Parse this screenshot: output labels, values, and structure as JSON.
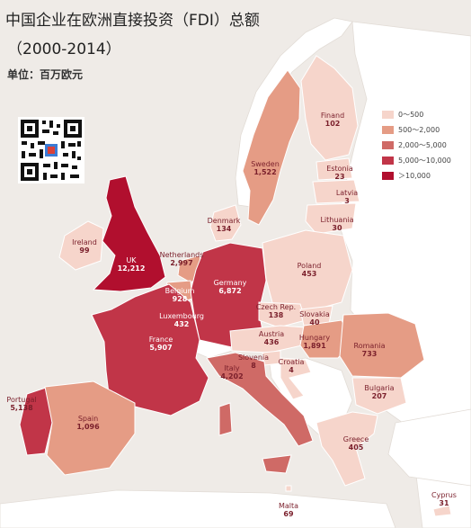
{
  "title": "中国企业在欧洲直接投资（FDI）总额",
  "subtitle": "（2000-2014）",
  "unit": "单位：百万欧元",
  "legend": [
    {
      "label": "0～500",
      "color": "#f6d5cb"
    },
    {
      "label": "500～2,000",
      "color": "#e59c85"
    },
    {
      "label": "2,000～5,000",
      "color": "#cf6a66"
    },
    {
      "label": "5,000～10,000",
      "color": "#c13548"
    },
    {
      "label": "＞10,000",
      "color": "#b10f2e"
    }
  ],
  "countries": [
    {
      "name": "Finand",
      "value": "102"
    },
    {
      "name": "Sweden",
      "value": "1,522"
    },
    {
      "name": "Estonia",
      "value": "23"
    },
    {
      "name": "Latvia",
      "value": "3"
    },
    {
      "name": "Lithuania",
      "value": "30"
    },
    {
      "name": "Denmark",
      "value": "134"
    },
    {
      "name": "Ireland",
      "value": "99"
    },
    {
      "name": "UK",
      "value": "12,212"
    },
    {
      "name": "Netherlands",
      "value": "2,997"
    },
    {
      "name": "Belgium",
      "value": "928"
    },
    {
      "name": "Luxembourg",
      "value": "432"
    },
    {
      "name": "Germany",
      "value": "6,872"
    },
    {
      "name": "Poland",
      "value": "453"
    },
    {
      "name": "Czech Rep.",
      "value": "138"
    },
    {
      "name": "Slovakia",
      "value": "40"
    },
    {
      "name": "Austria",
      "value": "436"
    },
    {
      "name": "Hungary",
      "value": "1,891"
    },
    {
      "name": "Romania",
      "value": "733"
    },
    {
      "name": "France",
      "value": "5,907"
    },
    {
      "name": "Slovenia",
      "value": "8"
    },
    {
      "name": "Croatia",
      "value": "4"
    },
    {
      "name": "Italy",
      "value": "4,202"
    },
    {
      "name": "Bulgaria",
      "value": "207"
    },
    {
      "name": "Portugal",
      "value": "5,138"
    },
    {
      "name": "Spain",
      "value": "1,096"
    },
    {
      "name": "Greece",
      "value": "405"
    },
    {
      "name": "Malta",
      "value": "69"
    },
    {
      "name": "Cyprus",
      "value": "31"
    }
  ]
}
